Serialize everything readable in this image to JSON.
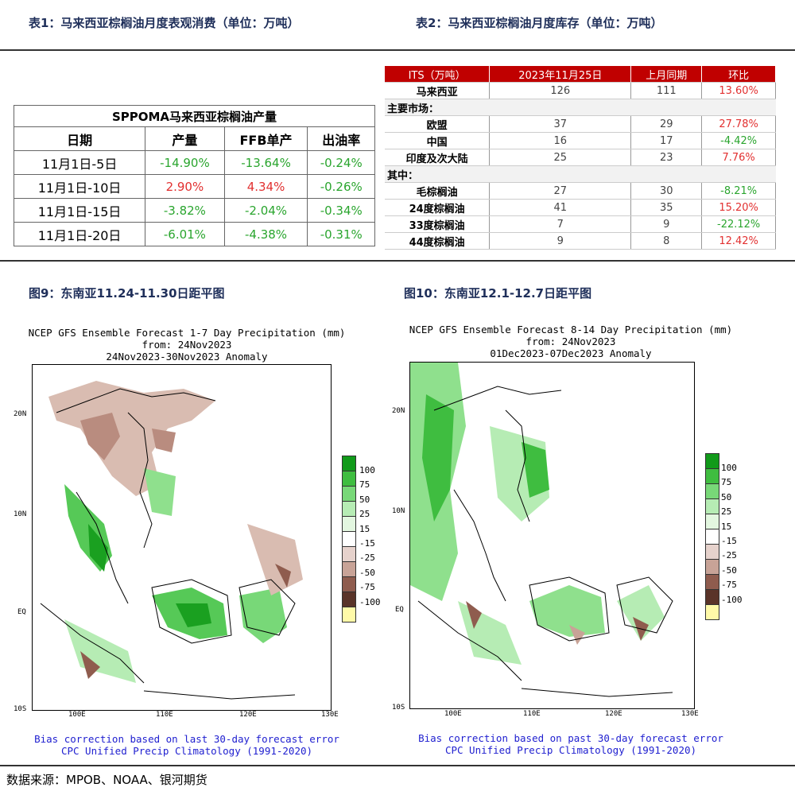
{
  "headers": {
    "table1_title": "表1：马来西亚棕榈油月度表观消费（单位：万吨）",
    "table2_title": "表2：马来西亚棕榈油月度库存（单位：万吨）",
    "fig9_title": "图9：东南亚11.24-11.30日距平图",
    "fig10_title": "图10：东南亚12.1-12.7日距平图"
  },
  "table1": {
    "title": "SPPOMA马来西亚棕榈油产量",
    "columns": [
      "日期",
      "产量",
      "FFB单产",
      "出油率"
    ],
    "rows": [
      {
        "date": "11月1日-5日",
        "output": "-14.90%",
        "ffb": "-13.64%",
        "oer": "-0.24%"
      },
      {
        "date": "11月1日-10日",
        "output": "2.90%",
        "ffb": "4.34%",
        "oer": "-0.26%"
      },
      {
        "date": "11月1日-15日",
        "output": "-3.82%",
        "ffb": "-2.04%",
        "oer": "-0.34%"
      },
      {
        "date": "11月1日-20日",
        "output": "-6.01%",
        "ffb": "-4.38%",
        "oer": "-0.31%"
      }
    ]
  },
  "table2": {
    "columns": [
      "ITS（万吨）",
      "2023年11月25日",
      "上月同期",
      "环比"
    ],
    "rows": [
      {
        "type": "row",
        "label": "马来西亚",
        "cur": "126",
        "prev": "111",
        "chg": "13.60%",
        "dir": "up"
      },
      {
        "type": "section",
        "label": "主要市场："
      },
      {
        "type": "row",
        "label": "欧盟",
        "cur": "37",
        "prev": "29",
        "chg": "27.78%",
        "dir": "up"
      },
      {
        "type": "row",
        "label": "中国",
        "cur": "16",
        "prev": "17",
        "chg": "-4.42%",
        "dir": "down"
      },
      {
        "type": "row",
        "label": "印度及次大陆",
        "cur": "25",
        "prev": "23",
        "chg": "7.76%",
        "dir": "up"
      },
      {
        "type": "section",
        "label": "其中："
      },
      {
        "type": "row",
        "label": "毛棕榈油",
        "cur": "27",
        "prev": "30",
        "chg": "-8.21%",
        "dir": "down"
      },
      {
        "type": "row",
        "label": "24度棕榈油",
        "cur": "41",
        "prev": "35",
        "chg": "15.20%",
        "dir": "up"
      },
      {
        "type": "row",
        "label": "33度棕榈油",
        "cur": "7",
        "prev": "9",
        "chg": "-22.12%",
        "dir": "down"
      },
      {
        "type": "row",
        "label": "44度棕榈油",
        "cur": "9",
        "prev": "8",
        "chg": "12.42%",
        "dir": "up"
      }
    ]
  },
  "maps": [
    {
      "title1": "NCEP GFS Ensemble Forecast 1-7 Day Precipitation (mm)",
      "title2": "from: 24Nov2023",
      "title3": "24Nov2023-30Nov2023 Anomaly",
      "foot1": "Bias correction based on last 30-day forecast error",
      "foot2": "CPC Unified Precip Climatology (1991-2020)"
    },
    {
      "title1": "NCEP GFS Ensemble Forecast 8-14 Day Precipitation (mm)",
      "title2": "from: 24Nov2023",
      "title3": "01Dec2023-07Dec2023 Anomaly",
      "foot1": "Bias correction based on past 30-day forecast error",
      "foot2": "CPC Unified Precip Climatology (1991-2020)"
    }
  ],
  "map_axes": {
    "lat_labels": [
      "20N",
      "10N",
      "EQ",
      "10S"
    ],
    "lon_labels": [
      "100E",
      "110E",
      "120E",
      "130E"
    ]
  },
  "legend": {
    "labels": [
      "100",
      "75",
      "50",
      "25",
      "15",
      "-15",
      "-25",
      "-50",
      "-75",
      "-100"
    ],
    "colors": [
      "#119a1a",
      "#3fbd40",
      "#78d878",
      "#b6ecb4",
      "#e3f7e0",
      "#ffffff",
      "#e6d2cc",
      "#c8a397",
      "#8f5c4e",
      "#5a3429",
      "#fffaa8"
    ]
  },
  "source": "数据来源：MPOB、NOAA、银河期货"
}
